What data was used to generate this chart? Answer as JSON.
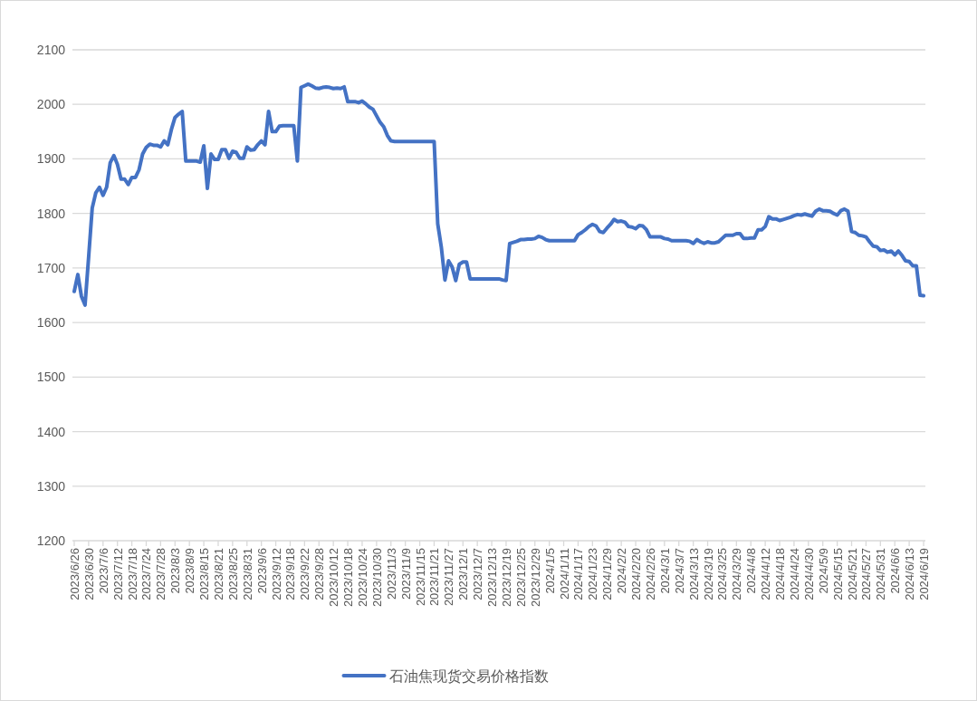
{
  "chart_data": {
    "type": "line",
    "categories": [
      "2023/6/26",
      null,
      null,
      null,
      "2023/6/30",
      null,
      null,
      null,
      "2023/7/6",
      null,
      null,
      null,
      "2023/7/12",
      null,
      null,
      null,
      "2023/7/18",
      null,
      null,
      null,
      "2023/7/24",
      null,
      null,
      null,
      "2023/7/28",
      null,
      null,
      null,
      "2023/8/3",
      null,
      null,
      null,
      "2023/8/9",
      null,
      null,
      null,
      "2023/8/15",
      null,
      null,
      null,
      "2023/8/21",
      null,
      null,
      null,
      "2023/8/25",
      null,
      null,
      null,
      "2023/8/31",
      null,
      null,
      null,
      "2023/9/6",
      null,
      null,
      null,
      "2023/9/12",
      null,
      null,
      null,
      "2023/9/18",
      null,
      null,
      null,
      "2023/9/22",
      null,
      null,
      null,
      "2023/9/28",
      null,
      null,
      null,
      "2023/10/12",
      null,
      null,
      null,
      "2023/10/18",
      null,
      null,
      null,
      "2023/10/24",
      null,
      null,
      null,
      "2023/10/30",
      null,
      null,
      null,
      "2023/11/3",
      null,
      null,
      null,
      "2023/11/9",
      null,
      null,
      null,
      "2023/11/15",
      null,
      null,
      null,
      "2023/11/21",
      null,
      null,
      null,
      "2023/11/27",
      null,
      null,
      null,
      "2023/12/1",
      null,
      null,
      null,
      "2023/12/7",
      null,
      null,
      null,
      "2023/12/13",
      null,
      null,
      null,
      "2023/12/19",
      null,
      null,
      null,
      "2023/12/25",
      null,
      null,
      null,
      "2023/12/29",
      null,
      null,
      null,
      "2024/1/5",
      null,
      null,
      null,
      "2024/1/11",
      null,
      null,
      null,
      "2024/1/17",
      null,
      null,
      null,
      "2024/1/23",
      null,
      null,
      null,
      "2024/1/29",
      null,
      null,
      null,
      "2024/2/2",
      null,
      null,
      null,
      "2024/2/20",
      null,
      null,
      null,
      "2024/2/26",
      null,
      null,
      null,
      "2024/3/1",
      null,
      null,
      null,
      "2024/3/7",
      null,
      null,
      null,
      "2024/3/13",
      null,
      null,
      null,
      "2024/3/19",
      null,
      null,
      null,
      "2024/3/25",
      null,
      null,
      null,
      "2024/3/29",
      null,
      null,
      null,
      "2024/4/8",
      null,
      null,
      null,
      "2024/4/12",
      null,
      null,
      null,
      "2024/4/18",
      null,
      null,
      null,
      "2024/4/24",
      null,
      null,
      null,
      "2024/4/30",
      null,
      null,
      null,
      "2024/5/9",
      null,
      null,
      null,
      "2024/5/15",
      null,
      null,
      null,
      "2024/5/21",
      null,
      null,
      null,
      "2024/5/27",
      null,
      null,
      null,
      "2024/5/31",
      null,
      null,
      null,
      "2024/6/6",
      null,
      null,
      null,
      "2024/6/13",
      null,
      null,
      null,
      "2024/6/19"
    ],
    "series": [
      {
        "name": "石油焦现货交易价格指数",
        "color": "#4472c4",
        "values": [
          1657,
          1688,
          1648,
          1632,
          1720,
          1810,
          1838,
          1848,
          1833,
          1848,
          1893,
          1906,
          1890,
          1863,
          1863,
          1853,
          1866,
          1866,
          1880,
          1909,
          1921,
          1927,
          1925,
          1925,
          1922,
          1933,
          1926,
          1954,
          1976,
          1982,
          1987,
          1896,
          1896,
          1896,
          1896,
          1894,
          1924,
          1846,
          1909,
          1899,
          1899,
          1917,
          1917,
          1901,
          1914,
          1912,
          1901,
          1901,
          1922,
          1916,
          1917,
          1926,
          1933,
          1926,
          1987,
          1950,
          1950,
          1960,
          1961,
          1961,
          1961,
          1961,
          1896,
          2031,
          2034,
          2037,
          2034,
          2030,
          2029,
          2031,
          2032,
          2031,
          2029,
          2030,
          2029,
          2032,
          2005,
          2005,
          2005,
          2003,
          2006,
          2001,
          1995,
          1991,
          1979,
          1967,
          1959,
          1943,
          1933,
          1932,
          1932,
          1932,
          1932,
          1932,
          1932,
          1932,
          1932,
          1932,
          1932,
          1932,
          1932,
          1781,
          1738,
          1678,
          1713,
          1702,
          1677,
          1707,
          1711,
          1711,
          1680,
          1680,
          1680,
          1680,
          1680,
          1680,
          1680,
          1680,
          1680,
          1678,
          1677,
          1745,
          1747,
          1749,
          1752,
          1752,
          1753,
          1753,
          1754,
          1758,
          1756,
          1752,
          1750,
          1750,
          1750,
          1750,
          1750,
          1750,
          1750,
          1750,
          1761,
          1765,
          1770,
          1776,
          1780,
          1777,
          1767,
          1765,
          1773,
          1780,
          1789,
          1785,
          1786,
          1784,
          1776,
          1775,
          1772,
          1778,
          1777,
          1770,
          1757,
          1757,
          1757,
          1757,
          1754,
          1753,
          1750,
          1750,
          1750,
          1750,
          1750,
          1749,
          1745,
          1752,
          1748,
          1745,
          1748,
          1746,
          1746,
          1748,
          1754,
          1760,
          1760,
          1760,
          1763,
          1763,
          1754,
          1754,
          1755,
          1755,
          1770,
          1770,
          1776,
          1794,
          1790,
          1790,
          1787,
          1789,
          1791,
          1793,
          1796,
          1798,
          1797,
          1799,
          1797,
          1795,
          1804,
          1808,
          1805,
          1805,
          1804,
          1800,
          1797,
          1805,
          1808,
          1804,
          1767,
          1765,
          1760,
          1759,
          1757,
          1748,
          1740,
          1739,
          1732,
          1733,
          1729,
          1731,
          1724,
          1731,
          1723,
          1713,
          1712,
          1704,
          1704,
          1650,
          1649
        ]
      }
    ],
    "ylim": [
      1200,
      2100
    ],
    "yticks": [
      1200,
      1300,
      1400,
      1500,
      1600,
      1700,
      1800,
      1900,
      2000,
      2100
    ],
    "grid": "y",
    "legend": "bottom"
  }
}
